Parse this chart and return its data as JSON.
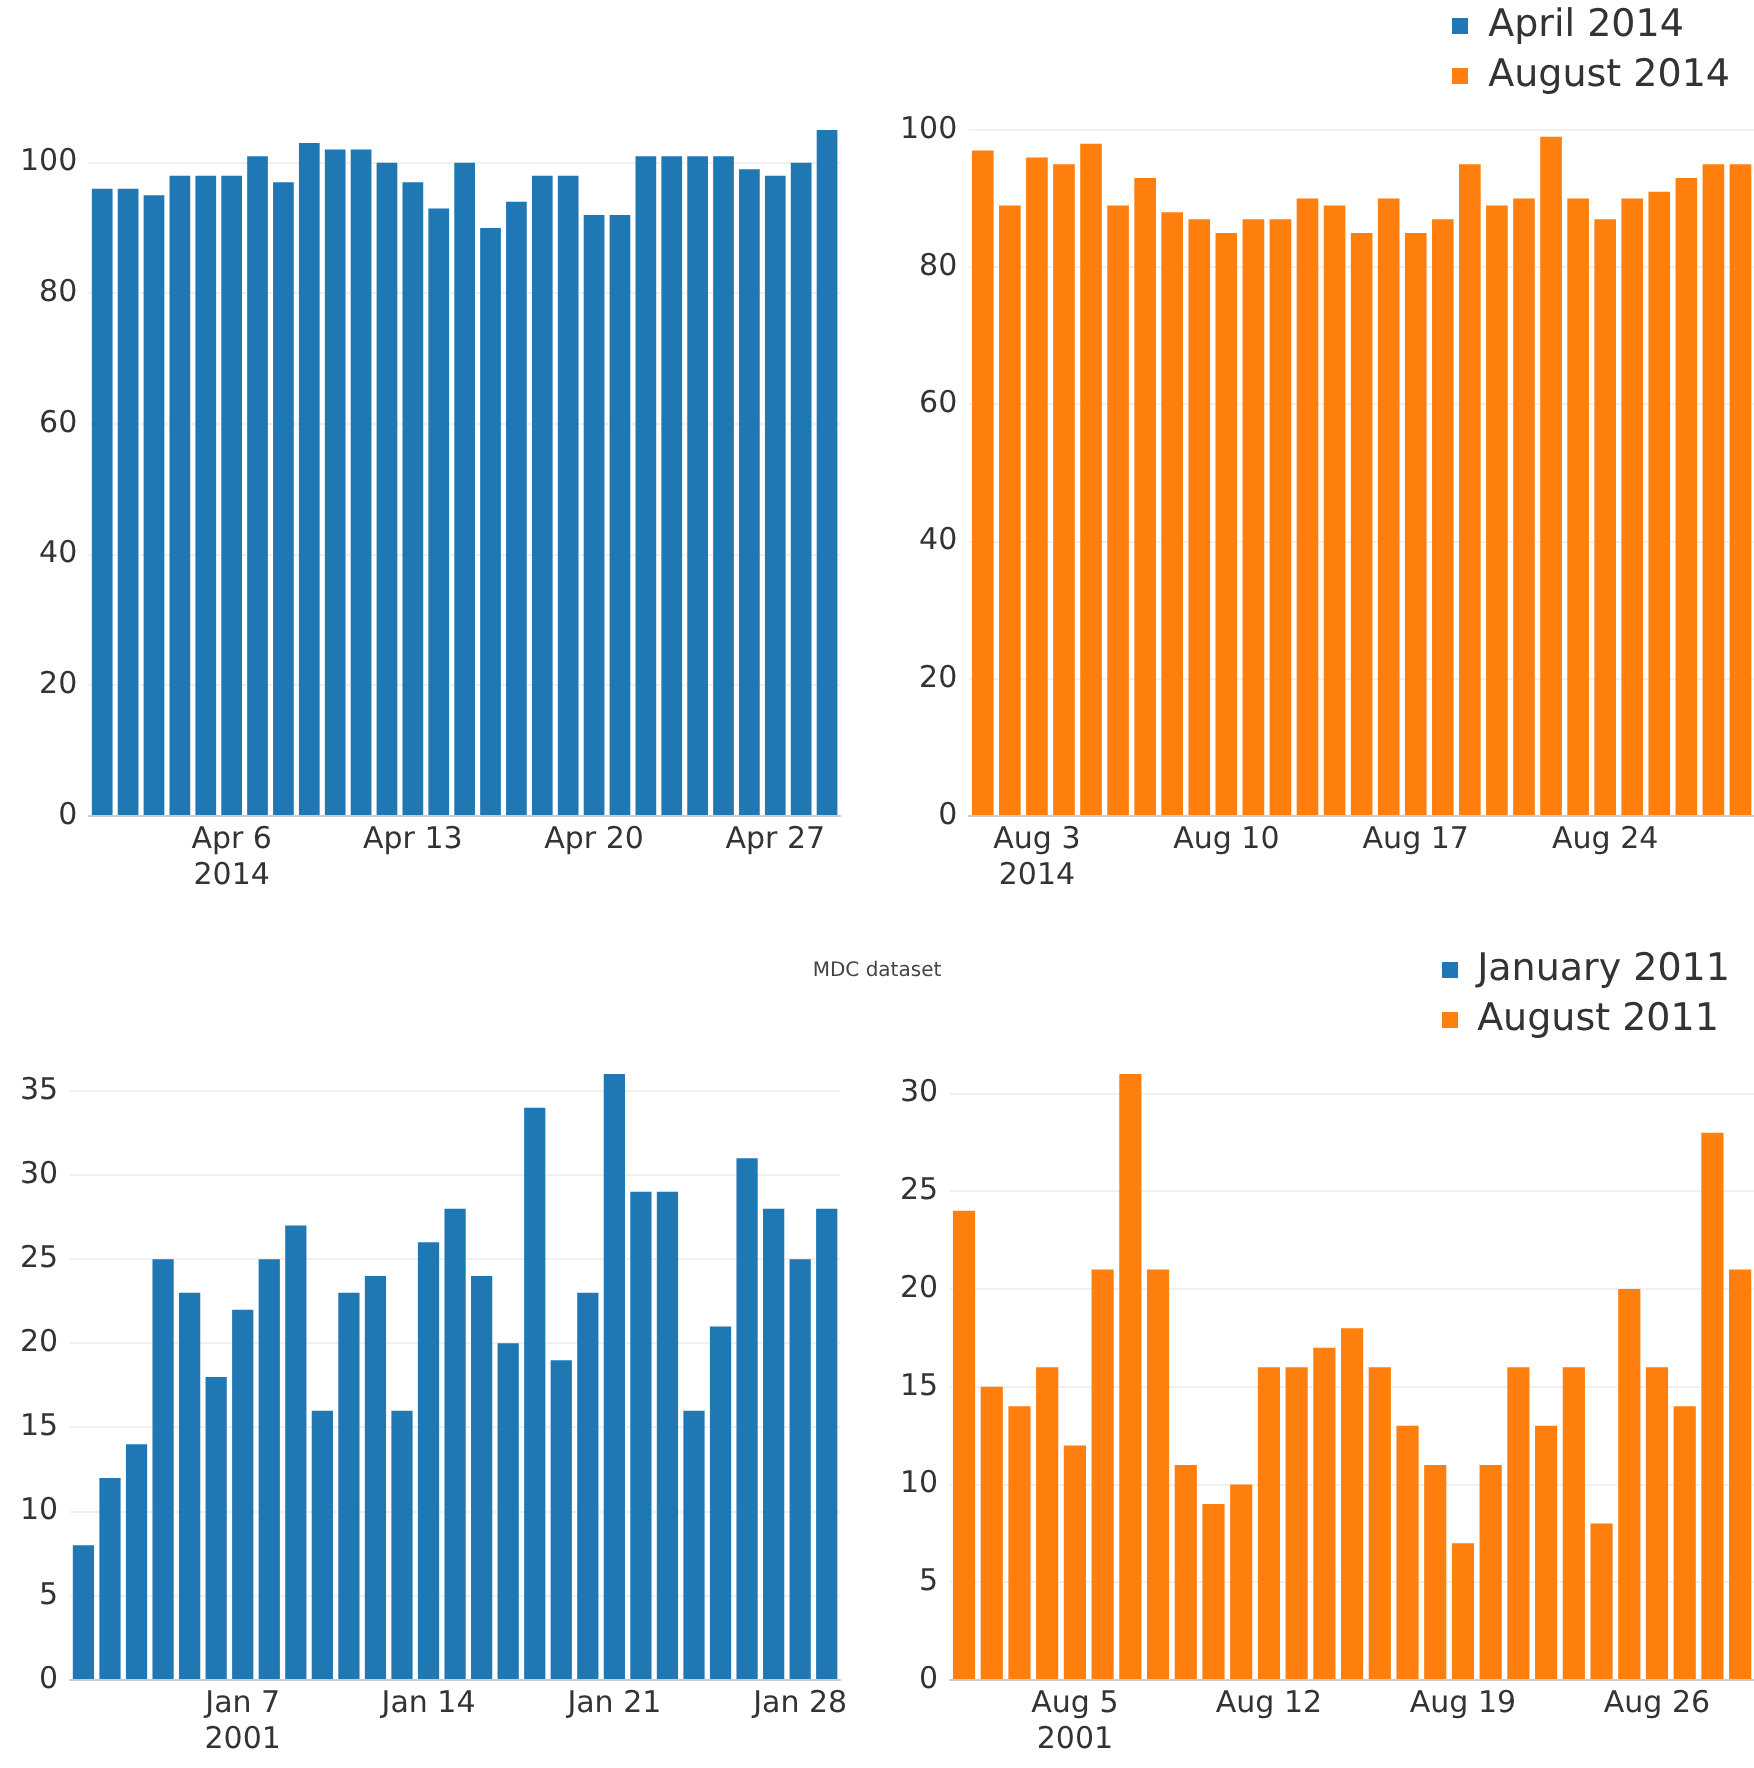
{
  "chart_data": [
    {
      "type": "bar",
      "x": [
        "2014-04-01",
        "2014-04-02",
        "2014-04-03",
        "2014-04-04",
        "2014-04-05",
        "2014-04-06",
        "2014-04-07",
        "2014-04-08",
        "2014-04-09",
        "2014-04-10",
        "2014-04-11",
        "2014-04-12",
        "2014-04-13",
        "2014-04-14",
        "2014-04-15",
        "2014-04-16",
        "2014-04-17",
        "2014-04-18",
        "2014-04-19",
        "2014-04-20",
        "2014-04-21",
        "2014-04-22",
        "2014-04-23",
        "2014-04-24",
        "2014-04-25",
        "2014-04-26",
        "2014-04-27",
        "2014-04-28",
        "2014-04-29"
      ],
      "series": [
        {
          "name": "April 2014",
          "color": "#1f77b4",
          "values": [
            96,
            96,
            95,
            98,
            98,
            98,
            101,
            97,
            103,
            102,
            102,
            100,
            97,
            93,
            100,
            90,
            94,
            98,
            98,
            92,
            92,
            101,
            101,
            101,
            101,
            99,
            98,
            100,
            105
          ]
        }
      ],
      "xlim": [
        "2014-03-31T12:00",
        "2014-04-29T12:00"
      ],
      "xticks": [
        {
          "value": "2014-04-06",
          "label": "Apr 6\n2014"
        },
        {
          "value": "2014-04-13",
          "label": "Apr 13"
        },
        {
          "value": "2014-04-20",
          "label": "Apr 20"
        },
        {
          "value": "2014-04-27",
          "label": "Apr 27"
        }
      ],
      "ylim": [
        0,
        105
      ],
      "yticks": [
        0,
        20,
        40,
        60,
        80,
        100
      ],
      "grid": "y",
      "legend": "top right"
    },
    {
      "type": "bar",
      "x": [
        "2014-08-01",
        "2014-08-02",
        "2014-08-03",
        "2014-08-04",
        "2014-08-05",
        "2014-08-06",
        "2014-08-07",
        "2014-08-08",
        "2014-08-09",
        "2014-08-10",
        "2014-08-11",
        "2014-08-12",
        "2014-08-13",
        "2014-08-14",
        "2014-08-15",
        "2014-08-16",
        "2014-08-17",
        "2014-08-18",
        "2014-08-19",
        "2014-08-20",
        "2014-08-21",
        "2014-08-22",
        "2014-08-23",
        "2014-08-24",
        "2014-08-25",
        "2014-08-26",
        "2014-08-27",
        "2014-08-28",
        "2014-08-29"
      ],
      "series": [
        {
          "name": "August 2014",
          "color": "#ff7f0e",
          "values": [
            97,
            89,
            96,
            95,
            98,
            89,
            93,
            88,
            87,
            85,
            87,
            87,
            90,
            89,
            85,
            90,
            85,
            87,
            95,
            89,
            90,
            99,
            90,
            87,
            90,
            91,
            93,
            95,
            95
          ]
        }
      ],
      "xlim": [
        "2014-07-31T12:00",
        "2014-08-29T12:00"
      ],
      "xticks": [
        {
          "value": "2014-08-03",
          "label": "Aug 3\n2014"
        },
        {
          "value": "2014-08-10",
          "label": "Aug 10"
        },
        {
          "value": "2014-08-17",
          "label": "Aug 17"
        },
        {
          "value": "2014-08-24",
          "label": "Aug 24"
        }
      ],
      "ylim": [
        0,
        100
      ],
      "yticks": [
        0,
        20,
        40,
        60,
        80,
        100
      ],
      "grid": "y",
      "legend": "top right"
    },
    {
      "type": "bar",
      "title": "MDC dataset",
      "x": [
        "2001-01-01",
        "2001-01-02",
        "2001-01-03",
        "2001-01-04",
        "2001-01-05",
        "2001-01-06",
        "2001-01-07",
        "2001-01-08",
        "2001-01-09",
        "2001-01-10",
        "2001-01-11",
        "2001-01-12",
        "2001-01-13",
        "2001-01-14",
        "2001-01-15",
        "2001-01-16",
        "2001-01-17",
        "2001-01-18",
        "2001-01-19",
        "2001-01-20",
        "2001-01-21",
        "2001-01-22",
        "2001-01-23",
        "2001-01-24",
        "2001-01-25",
        "2001-01-26",
        "2001-01-27",
        "2001-01-28",
        "2001-01-29"
      ],
      "series": [
        {
          "name": "January 2011",
          "color": "#1f77b4",
          "values": [
            8,
            12,
            14,
            25,
            23,
            18,
            22,
            25,
            27,
            16,
            23,
            24,
            16,
            26,
            28,
            24,
            20,
            34,
            19,
            23,
            36,
            29,
            29,
            16,
            21,
            31,
            28,
            25,
            28
          ]
        }
      ],
      "xlim": [
        "2000-12-31T12:00",
        "2001-01-29T12:00"
      ],
      "xticks": [
        {
          "value": "2001-01-07",
          "label": "Jan 7\n2001"
        },
        {
          "value": "2001-01-14",
          "label": "Jan 14"
        },
        {
          "value": "2001-01-21",
          "label": "Jan 21"
        },
        {
          "value": "2001-01-28",
          "label": "Jan 28"
        }
      ],
      "ylim": [
        0,
        36
      ],
      "yticks": [
        0,
        5,
        10,
        15,
        20,
        25,
        30,
        35
      ],
      "grid": "y",
      "legend": "top right"
    },
    {
      "type": "bar",
      "x": [
        "2001-08-01",
        "2001-08-02",
        "2001-08-03",
        "2001-08-04",
        "2001-08-05",
        "2001-08-06",
        "2001-08-07",
        "2001-08-08",
        "2001-08-09",
        "2001-08-10",
        "2001-08-11",
        "2001-08-12",
        "2001-08-13",
        "2001-08-14",
        "2001-08-15",
        "2001-08-16",
        "2001-08-17",
        "2001-08-18",
        "2001-08-19",
        "2001-08-20",
        "2001-08-21",
        "2001-08-22",
        "2001-08-23",
        "2001-08-24",
        "2001-08-25",
        "2001-08-26",
        "2001-08-27",
        "2001-08-28",
        "2001-08-29"
      ],
      "series": [
        {
          "name": "August 2011",
          "color": "#ff7f0e",
          "values": [
            24,
            15,
            14,
            16,
            12,
            21,
            31,
            21,
            11,
            9,
            10,
            16,
            16,
            17,
            18,
            16,
            13,
            11,
            7,
            11,
            16,
            13,
            16,
            8,
            20,
            16,
            14,
            28,
            21
          ]
        }
      ],
      "xlim": [
        "2001-07-31T12:00",
        "2001-08-29T12:00"
      ],
      "xticks": [
        {
          "value": "2001-08-05",
          "label": "Aug 5\n2001"
        },
        {
          "value": "2001-08-12",
          "label": "Aug 12"
        },
        {
          "value": "2001-08-19",
          "label": "Aug 19"
        },
        {
          "value": "2001-08-26",
          "label": "Aug 26"
        }
      ],
      "ylim": [
        0,
        31
      ],
      "yticks": [
        0,
        5,
        10,
        15,
        20,
        25,
        30
      ],
      "grid": "y",
      "legend": "top right"
    }
  ]
}
